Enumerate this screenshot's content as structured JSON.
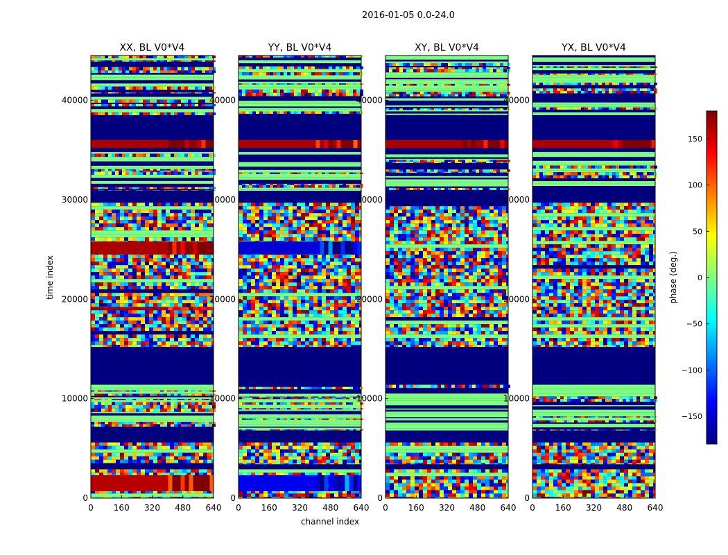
{
  "figure_title": "2016-01-05 0.0-24.0",
  "colors": {
    "jet": [
      "#00007f",
      "#0000ff",
      "#007fff",
      "#00ffff",
      "#7fff7f",
      "#ffff00",
      "#ff7f00",
      "#ff0000",
      "#7f0000"
    ],
    "background_band": "#00007f",
    "flag_band": "#7fff7f"
  },
  "chart_data": [
    {
      "type": "heatmap",
      "title": "XX, BL V0*V4",
      "xlabel": "channel index",
      "ylabel": "time index",
      "xlim": [
        0,
        640
      ],
      "ylim": [
        0,
        44500
      ],
      "xticks": [
        "0",
        "160",
        "320",
        "480",
        "640"
      ],
      "yticks": [
        "0",
        "10000",
        "20000",
        "30000",
        "40000"
      ],
      "value_label": "phase (deg.)"
    },
    {
      "type": "heatmap",
      "title": "YY, BL V0*V4",
      "xlabel": "channel index",
      "ylabel": "",
      "xlim": [
        0,
        640
      ],
      "ylim": [
        0,
        44500
      ],
      "xticks": [
        "0",
        "160",
        "320",
        "480",
        "640"
      ],
      "yticks": [
        "0",
        "10000",
        "20000",
        "30000",
        "40000"
      ],
      "value_label": "phase (deg.)"
    },
    {
      "type": "heatmap",
      "title": "XY, BL V0*V4",
      "xlabel": "",
      "ylabel": "",
      "xlim": [
        0,
        640
      ],
      "ylim": [
        0,
        44500
      ],
      "xticks": [
        "0",
        "160",
        "320",
        "480",
        "640"
      ],
      "yticks": [
        "0",
        "10000",
        "20000",
        "30000",
        "40000"
      ],
      "value_label": "phase (deg.)"
    },
    {
      "type": "heatmap",
      "title": "YX, BL V0*V4",
      "xlabel": "",
      "ylabel": "",
      "xlim": [
        0,
        640
      ],
      "ylim": [
        0,
        44500
      ],
      "xticks": [
        "0",
        "160",
        "320",
        "480",
        "640"
      ],
      "yticks": [
        "0",
        "10000",
        "20000",
        "30000",
        "40000"
      ],
      "value_label": "phase (deg.)"
    }
  ],
  "colorbar": {
    "label": "phase (deg.)",
    "range": [
      -180,
      180
    ],
    "ticks": [
      "150",
      "100",
      "50",
      "0",
      "−50",
      "−100",
      "−150"
    ],
    "tick_values": [
      150,
      100,
      50,
      0,
      -50,
      -100,
      -150
    ]
  },
  "time_segments": [
    {
      "from": 0,
      "to": 2900,
      "kind": "noisy"
    },
    {
      "from": 2900,
      "to": 3400,
      "kind": "blank"
    },
    {
      "from": 3400,
      "to": 5600,
      "kind": "noisy"
    },
    {
      "from": 5600,
      "to": 6800,
      "kind": "blank"
    },
    {
      "from": 6800,
      "to": 11400,
      "kind": "striped"
    },
    {
      "from": 11400,
      "to": 15200,
      "kind": "blank"
    },
    {
      "from": 15200,
      "to": 29700,
      "kind": "noisy"
    },
    {
      "from": 29700,
      "to": 30900,
      "kind": "blank"
    },
    {
      "from": 30900,
      "to": 34800,
      "kind": "striped"
    },
    {
      "from": 34800,
      "to": 38500,
      "kind": "blank"
    },
    {
      "from": 38500,
      "to": 44500,
      "kind": "striped"
    }
  ],
  "red_bands": [
    {
      "panel": 0,
      "from": 24500,
      "to": 25800,
      "value": 165
    },
    {
      "panel": 0,
      "from": 18900,
      "to": 19200,
      "value": 165
    },
    {
      "panel": 0,
      "from": 700,
      "to": 2300,
      "value": 160
    },
    {
      "panel": 0,
      "from": 35200,
      "to": 36000,
      "value": 165
    },
    {
      "panel": 1,
      "from": 24500,
      "to": 25800,
      "value": -150
    },
    {
      "panel": 1,
      "from": 700,
      "to": 2300,
      "value": -140
    },
    {
      "panel": 1,
      "from": 35200,
      "to": 36000,
      "value": 165
    },
    {
      "panel": 2,
      "from": 35200,
      "to": 36000,
      "value": 165
    },
    {
      "panel": 3,
      "from": 35200,
      "to": 36000,
      "value": 165
    }
  ]
}
